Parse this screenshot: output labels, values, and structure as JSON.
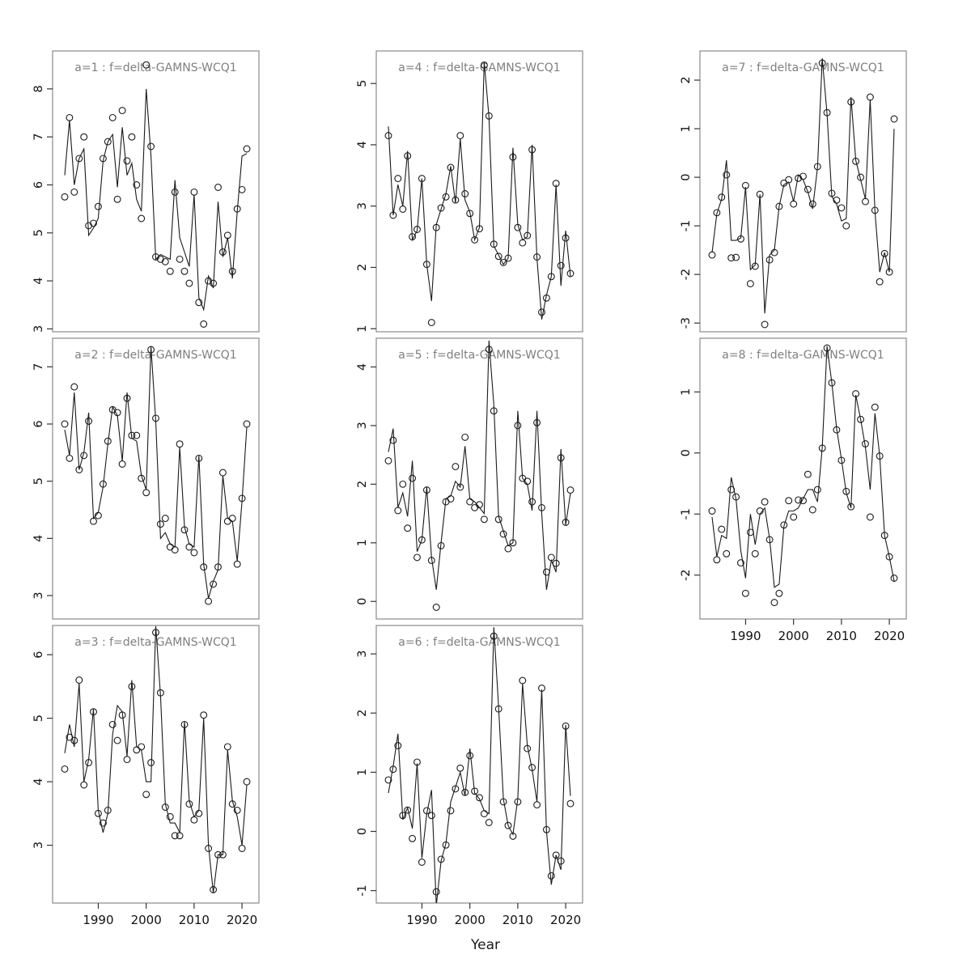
{
  "chart_data": {
    "type": "line",
    "description": "Grid of 8 model-fit panels: open-circle observed values with fitted line, by age group a=1..8",
    "xlabel": "Year",
    "x_ticks": [
      1990,
      2000,
      2010,
      2020
    ],
    "x_range": [
      1983,
      2021
    ],
    "grid": false,
    "legend_position": "none",
    "style": {
      "background": "#ffffff",
      "box_color": "#8a8a8a",
      "title_color": "#7f7f7f",
      "tick_color": "#333333",
      "tick_label_color": "#111111",
      "line_color": "#1a1a1a",
      "point_color": "#1a1a1a"
    },
    "years": [
      1983,
      1984,
      1985,
      1986,
      1987,
      1988,
      1989,
      1990,
      1991,
      1992,
      1993,
      1994,
      1995,
      1996,
      1997,
      1998,
      1999,
      2000,
      2001,
      2002,
      2003,
      2004,
      2005,
      2006,
      2007,
      2008,
      2009,
      2010,
      2011,
      2012,
      2013,
      2014,
      2015,
      2016,
      2017,
      2018,
      2019,
      2020,
      2021
    ],
    "panels": [
      {
        "id": "a1",
        "title": "a=1 : f=delta-GAMNS-WCQ1",
        "col": 0,
        "row": 0,
        "ylim": [
          2.94,
          8.79
        ],
        "yticks": [
          3,
          4,
          5,
          6,
          7,
          8
        ],
        "xaxis": false,
        "observed": [
          5.75,
          7.4,
          5.85,
          6.55,
          7.0,
          5.15,
          5.2,
          5.55,
          6.55,
          6.9,
          7.4,
          5.7,
          7.55,
          6.5,
          7.0,
          6.0,
          5.3,
          8.5,
          6.8,
          4.5,
          4.45,
          4.4,
          4.2,
          5.85,
          4.45,
          4.2,
          3.95,
          5.85,
          3.55,
          3.1,
          4.0,
          3.95,
          5.95,
          4.6,
          4.95,
          4.2,
          5.5,
          5.9,
          6.75
        ],
        "fitted": [
          6.2,
          7.35,
          6.0,
          6.55,
          6.75,
          4.95,
          5.1,
          5.3,
          6.5,
          6.9,
          7.05,
          5.95,
          7.2,
          6.2,
          6.45,
          5.7,
          5.45,
          8.0,
          6.6,
          4.45,
          4.55,
          4.5,
          4.45,
          6.1,
          4.9,
          4.6,
          4.3,
          5.8,
          3.65,
          3.4,
          4.1,
          3.85,
          5.65,
          4.5,
          4.9,
          4.05,
          5.45,
          6.6,
          6.65
        ]
      },
      {
        "id": "a2",
        "title": "a=2 : f=delta-GAMNS-WCQ1",
        "col": 0,
        "row": 1,
        "ylim": [
          2.59,
          7.5
        ],
        "yticks": [
          3,
          4,
          5,
          6,
          7
        ],
        "xaxis": false,
        "observed": [
          6.0,
          5.4,
          6.65,
          5.2,
          5.45,
          6.05,
          4.3,
          4.4,
          4.95,
          5.7,
          6.25,
          6.2,
          5.3,
          6.45,
          5.8,
          5.8,
          5.05,
          4.8,
          7.3,
          6.1,
          4.25,
          4.35,
          3.85,
          3.8,
          5.65,
          4.15,
          3.85,
          3.75,
          5.4,
          3.5,
          2.9,
          3.2,
          3.5,
          5.15,
          4.3,
          4.35,
          3.55,
          4.7,
          6.0
        ],
        "fitted": [
          5.9,
          5.45,
          6.55,
          5.2,
          5.5,
          6.2,
          4.35,
          4.45,
          4.9,
          5.65,
          6.3,
          6.15,
          5.35,
          6.55,
          5.75,
          5.7,
          5.1,
          4.85,
          7.35,
          6.05,
          4.0,
          4.1,
          3.9,
          3.85,
          5.6,
          4.2,
          3.9,
          3.85,
          5.45,
          3.55,
          2.95,
          3.25,
          3.45,
          5.1,
          4.35,
          4.3,
          3.6,
          4.65,
          5.95
        ]
      },
      {
        "id": "a3",
        "title": "a=3 : f=delta-GAMNS-WCQ1",
        "col": 0,
        "row": 2,
        "ylim": [
          2.09,
          6.46
        ],
        "yticks": [
          3,
          4,
          5,
          6
        ],
        "xaxis": true,
        "observed": [
          4.2,
          4.7,
          4.65,
          5.6,
          3.95,
          4.3,
          5.1,
          3.5,
          3.35,
          3.55,
          4.9,
          4.65,
          5.05,
          4.35,
          5.5,
          4.5,
          4.55,
          3.8,
          4.3,
          6.35,
          5.4,
          3.6,
          3.45,
          3.15,
          3.15,
          4.9,
          3.65,
          3.4,
          3.5,
          5.05,
          2.95,
          2.3,
          2.85,
          2.85,
          4.55,
          3.65,
          3.55,
          2.95,
          4.0
        ],
        "fitted": [
          4.45,
          4.9,
          4.55,
          5.55,
          4.0,
          4.35,
          5.15,
          3.55,
          3.2,
          3.5,
          4.75,
          5.2,
          5.1,
          4.4,
          5.6,
          4.55,
          4.5,
          4.0,
          4.0,
          6.45,
          5.35,
          3.65,
          3.35,
          3.35,
          3.2,
          4.95,
          3.7,
          3.45,
          3.55,
          5.0,
          3.0,
          2.25,
          2.85,
          2.85,
          4.5,
          3.7,
          3.45,
          3.0,
          3.95
        ]
      },
      {
        "id": "a4",
        "title": "a=4 : f=delta-GAMNS-WCQ1",
        "col": 1,
        "row": 0,
        "ylim": [
          0.95,
          5.53
        ],
        "yticks": [
          1,
          2,
          3,
          4,
          5
        ],
        "xaxis": false,
        "observed": [
          4.15,
          2.85,
          3.45,
          2.95,
          3.82,
          2.5,
          2.62,
          3.45,
          2.05,
          1.1,
          2.65,
          2.97,
          3.15,
          3.63,
          3.1,
          4.15,
          3.2,
          2.88,
          2.45,
          2.63,
          5.3,
          4.47,
          2.38,
          2.18,
          2.08,
          2.15,
          3.8,
          2.65,
          2.4,
          2.52,
          3.92,
          2.17,
          1.27,
          1.5,
          1.85,
          3.37,
          2.03,
          2.48,
          1.9
        ],
        "fitted": [
          4.3,
          2.85,
          3.35,
          3.0,
          3.9,
          2.45,
          2.6,
          3.45,
          2.05,
          1.45,
          2.7,
          2.95,
          3.2,
          3.65,
          3.05,
          4.1,
          3.1,
          2.9,
          2.45,
          2.65,
          5.35,
          4.45,
          2.35,
          2.2,
          2.05,
          2.15,
          3.95,
          2.7,
          2.45,
          2.5,
          4.0,
          2.15,
          1.15,
          1.55,
          1.85,
          3.35,
          1.7,
          2.6,
          1.85
        ]
      },
      {
        "id": "a5",
        "title": "a=5 : f=delta-GAMNS-WCQ1",
        "col": 1,
        "row": 1,
        "ylim": [
          -0.3,
          4.49
        ],
        "yticks": [
          0,
          1,
          2,
          3,
          4
        ],
        "xaxis": false,
        "observed": [
          2.4,
          2.75,
          1.55,
          2.0,
          1.25,
          2.1,
          0.75,
          1.05,
          1.9,
          0.7,
          -0.1,
          0.95,
          1.7,
          1.75,
          2.3,
          1.95,
          2.8,
          1.7,
          1.6,
          1.65,
          1.4,
          4.3,
          3.25,
          1.4,
          1.15,
          0.9,
          1.0,
          3.0,
          2.1,
          2.05,
          1.7,
          3.05,
          1.6,
          0.5,
          0.75,
          0.65,
          2.45,
          1.35,
          1.9
        ],
        "fitted": [
          2.55,
          2.95,
          1.6,
          1.85,
          1.45,
          2.4,
          0.85,
          1.05,
          1.95,
          0.75,
          0.2,
          1.0,
          1.75,
          1.8,
          2.05,
          1.95,
          2.65,
          1.75,
          1.7,
          1.6,
          1.5,
          4.45,
          3.35,
          1.45,
          1.2,
          0.95,
          1.0,
          3.25,
          2.1,
          2.0,
          1.55,
          3.25,
          1.5,
          0.2,
          0.7,
          0.5,
          2.6,
          1.3,
          1.85
        ]
      },
      {
        "id": "a6",
        "title": "a=6 : f=delta-GAMNS-WCQ1",
        "col": 1,
        "row": 2,
        "ylim": [
          -1.21,
          3.48
        ],
        "yticks": [
          -1,
          0,
          1,
          2,
          3
        ],
        "xaxis": true,
        "observed": [
          0.87,
          1.05,
          1.45,
          0.27,
          0.36,
          -0.12,
          1.17,
          -0.52,
          0.35,
          0.27,
          -1.02,
          -0.47,
          -0.23,
          0.35,
          0.72,
          1.07,
          0.66,
          1.28,
          0.68,
          0.57,
          0.3,
          0.15,
          3.3,
          2.07,
          0.5,
          0.1,
          -0.08,
          0.5,
          2.55,
          1.4,
          1.08,
          0.45,
          2.42,
          0.03,
          -0.75,
          -0.4,
          -0.5,
          1.78,
          0.47
        ],
        "fitted": [
          0.65,
          1.1,
          1.65,
          0.2,
          0.4,
          0.05,
          1.15,
          -0.45,
          0.3,
          0.7,
          -1.25,
          -0.5,
          -0.2,
          0.5,
          0.75,
          1.0,
          0.6,
          1.4,
          0.65,
          0.55,
          0.35,
          0.3,
          3.45,
          2.1,
          0.55,
          0.1,
          -0.05,
          0.55,
          2.5,
          1.45,
          1.05,
          0.5,
          2.4,
          0.0,
          -0.9,
          -0.4,
          -0.65,
          1.8,
          0.6
        ]
      },
      {
        "id": "a7",
        "title": "a=7 : f=delta-GAMNS-WCQ1",
        "col": 2,
        "row": 0,
        "ylim": [
          -3.18,
          2.6
        ],
        "yticks": [
          -3,
          -2,
          -1,
          0,
          1,
          2
        ],
        "xaxis": false,
        "observed": [
          -1.6,
          -0.73,
          -0.41,
          0.05,
          -1.66,
          -1.65,
          -1.27,
          -0.17,
          -2.19,
          -1.83,
          -0.35,
          -3.03,
          -1.7,
          -1.55,
          -0.6,
          -0.12,
          -0.05,
          -0.55,
          -0.02,
          0.02,
          -0.25,
          -0.55,
          0.22,
          2.35,
          1.33,
          -0.33,
          -0.47,
          -0.63,
          -1.0,
          1.55,
          0.33,
          0.0,
          -0.5,
          1.65,
          -0.68,
          -2.15,
          -1.57,
          -1.95,
          1.2
        ],
        "fitted": [
          -1.55,
          -0.75,
          -0.45,
          0.35,
          -1.3,
          -1.3,
          -1.25,
          -0.2,
          -1.9,
          -1.8,
          -0.35,
          -2.8,
          -1.6,
          -1.5,
          -0.6,
          -0.15,
          -0.1,
          -0.5,
          0.05,
          -0.05,
          -0.3,
          -0.65,
          0.2,
          2.45,
          1.3,
          -0.4,
          -0.55,
          -0.9,
          -0.85,
          1.65,
          0.35,
          -0.05,
          -0.45,
          1.6,
          -0.7,
          -1.95,
          -1.55,
          -1.95,
          1.0
        ]
      },
      {
        "id": "a8",
        "title": "a=8 : f=delta-GAMNS-WCQ1",
        "col": 2,
        "row": 1,
        "ylim": [
          -2.72,
          1.88
        ],
        "yticks": [
          -2,
          -1,
          0,
          1
        ],
        "xaxis": true,
        "observed": [
          -0.95,
          -1.75,
          -1.25,
          -1.65,
          -0.6,
          -0.72,
          -1.8,
          -2.3,
          -1.3,
          -1.65,
          -0.95,
          -0.8,
          -1.42,
          -2.45,
          -2.3,
          -1.18,
          -0.78,
          -1.05,
          -0.77,
          -0.78,
          -0.35,
          -0.93,
          -0.6,
          0.08,
          1.72,
          1.15,
          0.38,
          -0.12,
          -0.63,
          -0.88,
          0.97,
          0.55,
          0.15,
          -1.05,
          0.75,
          -0.05,
          -1.35,
          -1.7,
          -2.05
        ],
        "fitted": [
          -1.05,
          -1.7,
          -1.35,
          -1.4,
          -0.4,
          -0.75,
          -1.6,
          -2.05,
          -1.0,
          -1.5,
          -1.0,
          -0.9,
          -1.4,
          -2.2,
          -2.15,
          -1.2,
          -0.95,
          -0.95,
          -0.9,
          -0.75,
          -0.6,
          -0.6,
          -0.8,
          0.1,
          1.75,
          1.15,
          0.4,
          -0.1,
          -0.65,
          -0.9,
          0.95,
          0.55,
          0.1,
          -0.6,
          0.65,
          -0.05,
          -1.35,
          -1.7,
          -2.1
        ]
      }
    ]
  }
}
